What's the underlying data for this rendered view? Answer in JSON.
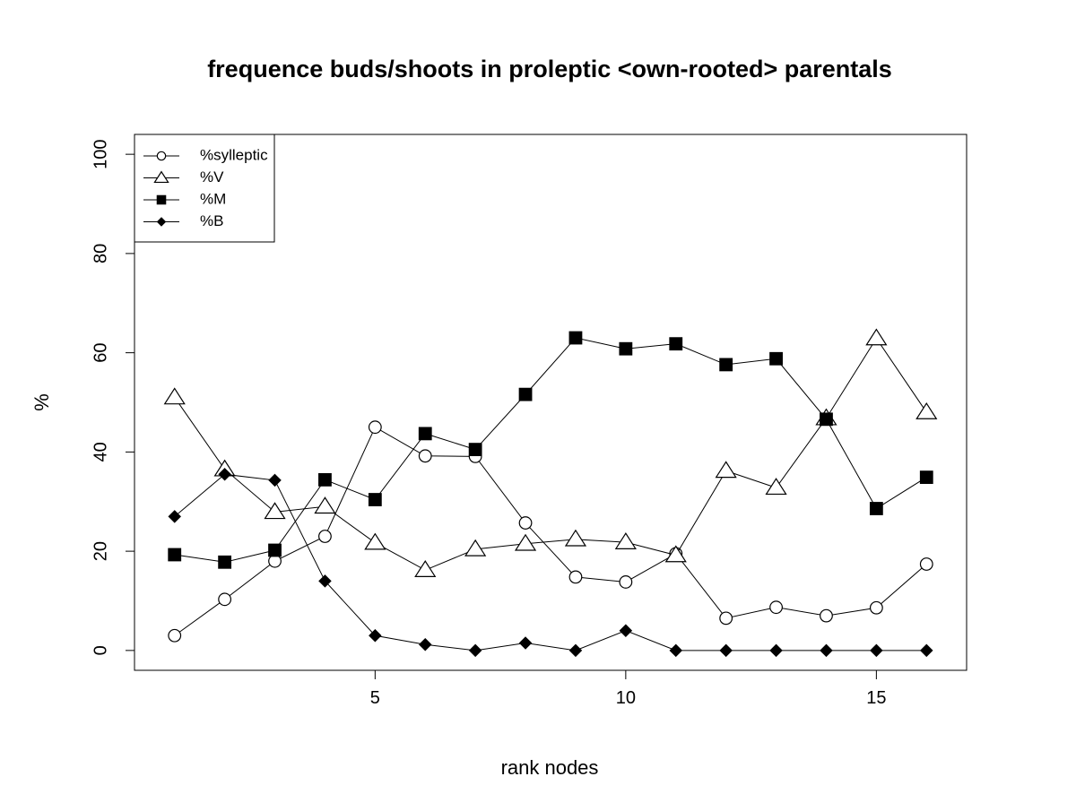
{
  "chart_data": {
    "type": "line",
    "title": "frequence buds/shoots in proleptic <own-rooted> parentals",
    "xlabel": "rank nodes",
    "ylabel": "%",
    "xlim": [
      0.2,
      16.8
    ],
    "ylim": [
      -4,
      104
    ],
    "x_ticks": [
      5,
      10,
      15
    ],
    "y_ticks": [
      0,
      20,
      40,
      60,
      80,
      100
    ],
    "grid": false,
    "legend_position": "top-left",
    "x": [
      1,
      2,
      3,
      4,
      5,
      6,
      7,
      8,
      9,
      10,
      11,
      12,
      13,
      14,
      15,
      16
    ],
    "series": [
      {
        "name": "%sylleptic",
        "marker": "open-circle",
        "values": [
          3,
          10.3,
          18,
          23,
          45,
          39.2,
          39.1,
          25.7,
          14.8,
          13.8,
          19.5,
          6.5,
          8.7,
          7,
          8.6,
          17.4
        ]
      },
      {
        "name": "%V",
        "marker": "open-triangle",
        "values": [
          51,
          36.5,
          27.9,
          29,
          21.7,
          16.2,
          20.4,
          21.5,
          22.4,
          21.8,
          19.2,
          36.2,
          32.8,
          46.8,
          62.9,
          48
        ]
      },
      {
        "name": "%M",
        "marker": "filled-square",
        "values": [
          19.3,
          17.8,
          20.2,
          34.4,
          30.4,
          43.7,
          40.5,
          51.6,
          63,
          60.8,
          61.8,
          57.6,
          58.8,
          46.6,
          28.6,
          34.9
        ]
      },
      {
        "name": "%B",
        "marker": "filled-diamond",
        "values": [
          27,
          35.5,
          34.3,
          14,
          3,
          1.2,
          0,
          1.5,
          0,
          4,
          0,
          0,
          0,
          0,
          0,
          0
        ]
      }
    ]
  }
}
